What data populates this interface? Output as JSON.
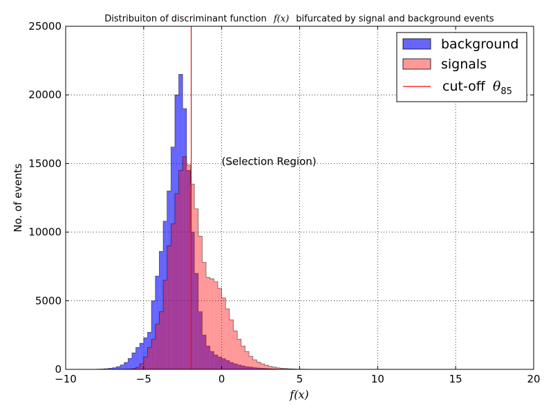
{
  "chart_data": {
    "type": "histogram",
    "title": "Distribuiton of discriminant function",
    "title_math": "f(x)",
    "title_suffix": "bifurcated by signal and background events",
    "xlabel": "f(x)",
    "ylabel": "No. of events",
    "xlim": [
      -10,
      20
    ],
    "ylim": [
      0,
      25000
    ],
    "xticks": [
      -10,
      -5,
      0,
      5,
      10,
      15,
      20
    ],
    "yticks": [
      0,
      5000,
      10000,
      15000,
      20000,
      25000
    ],
    "grid": true,
    "legend_position": "top-right",
    "annotation": "(Selection Region)",
    "annotation_x": 0,
    "annotation_y": 15000,
    "cutoff": {
      "x": -1.95,
      "label_prefix": "cut-off",
      "label_symbol": "θ",
      "label_subscript": "85",
      "color": "#ff0000"
    },
    "bin_start": -8.0,
    "bin_width": 0.25,
    "series": [
      {
        "name": "background",
        "color": "#0000ff",
        "opacity": 0.6,
        "values": [
          20,
          30,
          50,
          80,
          120,
          200,
          320,
          500,
          800,
          1200,
          1600,
          1900,
          2300,
          2700,
          5000,
          6800,
          8600,
          10800,
          13000,
          16200,
          20000,
          21500,
          19000,
          14500,
          10000,
          7000,
          4200,
          2500,
          1700,
          1300,
          1050,
          900,
          780,
          650,
          500,
          400,
          320,
          250,
          200,
          160,
          120,
          100,
          80,
          60,
          40,
          30,
          20,
          15,
          10,
          5
        ]
      },
      {
        "name": "signals",
        "color": "#ff0000",
        "opacity": 0.4,
        "values": [
          0,
          0,
          0,
          0,
          0,
          0,
          0,
          10,
          20,
          50,
          150,
          400,
          900,
          1600,
          2200,
          3300,
          4200,
          6500,
          9000,
          10600,
          12800,
          14500,
          15500,
          14900,
          13500,
          11700,
          9700,
          7800,
          6700,
          6600,
          6400,
          5900,
          5200,
          4400,
          3600,
          2800,
          2200,
          1700,
          1300,
          950,
          700,
          520,
          400,
          300,
          220,
          160,
          110,
          80,
          60,
          40,
          30,
          20,
          15,
          10,
          5
        ]
      }
    ]
  }
}
